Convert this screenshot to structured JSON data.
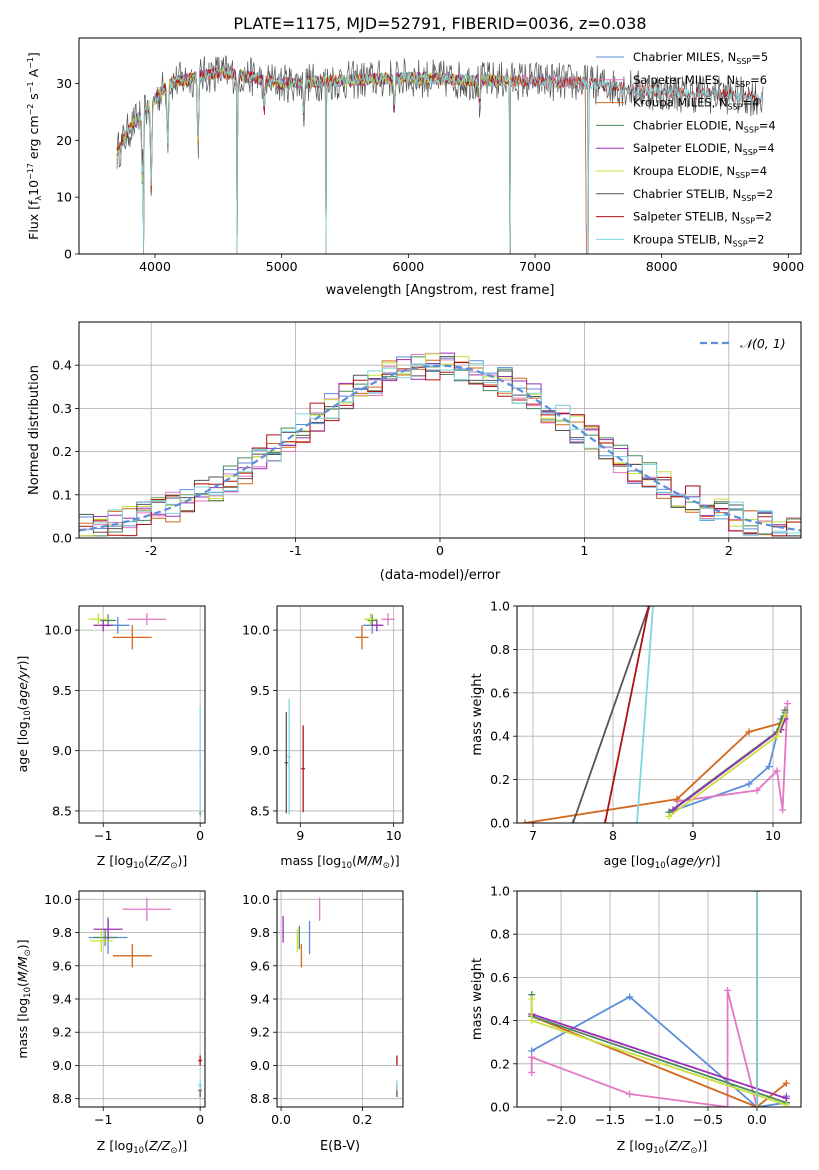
{
  "title": "PLATE=1175, MJD=52791, FIBERID=0036, z=0.038",
  "colors": {
    "chabrier_miles": "#5b8fd9",
    "salpeter_miles": "#e377c2",
    "kroupa_miles": "#d2691e",
    "chabrier_elodie": "#4a8a5a",
    "salpeter_elodie": "#9b30b5",
    "kroupa_elodie": "#c8e03c",
    "chabrier_stelib": "#555555",
    "salpeter_stelib": "#b01010",
    "kroupa_stelib": "#7fd8dc",
    "normal_curve": "#5b8fd9",
    "grid": "#b0b0b0"
  },
  "chart_data": [
    {
      "id": "spectrum",
      "type": "line",
      "xlabel": "wavelength [Angstrom, rest frame]",
      "ylabel": "Flux [f",
      "ylabel_parts": [
        "Flux [f",
        "λ",
        "10",
        "−17",
        " erg cm",
        "−2",
        " s",
        "−1",
        " A",
        "−1",
        "]"
      ],
      "xlim": [
        3400,
        9100
      ],
      "ylim": [
        0,
        38
      ],
      "xticks": [
        4000,
        5000,
        6000,
        7000,
        8000,
        9000
      ],
      "yticks": [
        0,
        10,
        20,
        30
      ],
      "grid": false,
      "legend_position": "right",
      "legend": [
        {
          "key": "chabrier_miles",
          "base": "Chabrier MILES, N",
          "sub": "SSP",
          "tail": "=5"
        },
        {
          "key": "salpeter_miles",
          "base": "Salpeter MILES, N",
          "sub": "SSP",
          "tail": "=6"
        },
        {
          "key": "kroupa_miles",
          "base": "Kroupa MILES, N",
          "sub": "SSP",
          "tail": "=4"
        },
        {
          "key": "chabrier_elodie",
          "base": "Chabrier ELODIE, N",
          "sub": "SSP",
          "tail": "=4"
        },
        {
          "key": "salpeter_elodie",
          "base": "Salpeter ELODIE, N",
          "sub": "SSP",
          "tail": "=4"
        },
        {
          "key": "kroupa_elodie",
          "base": "Kroupa ELODIE, N",
          "sub": "SSP",
          "tail": "=4"
        },
        {
          "key": "chabrier_stelib",
          "base": "Chabrier STELIB, N",
          "sub": "SSP",
          "tail": "=2"
        },
        {
          "key": "salpeter_stelib",
          "base": "Salpeter STELIB, N",
          "sub": "SSP",
          "tail": "=2"
        },
        {
          "key": "kroupa_stelib",
          "base": "Kroupa STELIB, N",
          "sub": "SSP",
          "tail": "=2"
        }
      ],
      "profile": [
        [
          3680,
          17
        ],
        [
          3800,
          22
        ],
        [
          3950,
          26
        ],
        [
          4100,
          30
        ],
        [
          4300,
          31
        ],
        [
          4500,
          32
        ],
        [
          4800,
          31
        ],
        [
          5000,
          30
        ],
        [
          5500,
          30.5
        ],
        [
          6000,
          31
        ],
        [
          6500,
          30.5
        ],
        [
          7000,
          30.5
        ],
        [
          7400,
          30
        ],
        [
          8000,
          28.5
        ],
        [
          8500,
          28
        ],
        [
          8800,
          27.5
        ]
      ],
      "absorption_dips": [
        [
          3900,
          12
        ],
        [
          3970,
          15
        ],
        [
          4100,
          10
        ],
        [
          4340,
          12
        ],
        [
          4650,
          6
        ],
        [
          4861,
          6
        ],
        [
          5175,
          5
        ],
        [
          5890,
          5
        ],
        [
          6563,
          4
        ]
      ],
      "noise_series": "chabrier_stelib",
      "series_ranges": {
        "chabrier_miles": [
          3700,
          7400
        ],
        "salpeter_miles": [
          3700,
          7400
        ],
        "kroupa_miles": [
          3700,
          7400
        ],
        "chabrier_elodie": [
          3700,
          6800
        ],
        "salpeter_elodie": [
          3700,
          6800
        ],
        "kroupa_elodie": [
          3700,
          6800
        ],
        "chabrier_stelib": [
          3700,
          8800
        ],
        "salpeter_stelib": [
          3700,
          8800
        ],
        "kroupa_stelib": [
          3700,
          8800
        ]
      },
      "dropouts": [
        [
          3910,
          0
        ],
        [
          4650,
          0
        ],
        [
          5350,
          0
        ],
        [
          6800,
          0
        ],
        [
          7420,
          0
        ]
      ]
    },
    {
      "id": "residuals",
      "type": "histogram",
      "xlabel": "(data-model)/error",
      "ylabel": "Normed distribution",
      "xlim": [
        -2.5,
        2.5
      ],
      "ylim": [
        0,
        0.5
      ],
      "xticks": [
        -2,
        -1,
        0,
        1,
        2
      ],
      "yticks": [
        0.0,
        0.1,
        0.2,
        0.3,
        0.4
      ],
      "grid": true,
      "legend_position": "top-right",
      "legend": [
        {
          "key": "normal_curve",
          "label": "𝒩(0, 1)",
          "style": "dashed"
        }
      ],
      "bin_width": 0.1,
      "reference_curve": "standard normal pdf",
      "series_keys": [
        "chabrier_miles",
        "salpeter_miles",
        "kroupa_miles",
        "chabrier_elodie",
        "salpeter_elodie",
        "kroupa_elodie",
        "chabrier_stelib",
        "salpeter_stelib",
        "kroupa_stelib"
      ]
    },
    {
      "id": "age_vs_Z",
      "type": "scatter",
      "xlabel": "Z [log",
      "ylabel": "age  [log",
      "xlim": [
        -1.25,
        0.05
      ],
      "ylim": [
        8.4,
        10.2
      ],
      "xticks": [
        -1,
        0
      ],
      "xtick_labels": [
        "−1",
        "0"
      ],
      "yticks": [
        8.5,
        9.0,
        9.5,
        10.0
      ],
      "ytick_labels": [
        "8.5",
        "9.0",
        "9.5",
        "10.0"
      ],
      "grid": true,
      "points": [
        {
          "key": "chabrier_miles",
          "x": -0.85,
          "y": 10.04,
          "xerr": 0.12,
          "yerr": 0.07
        },
        {
          "key": "salpeter_miles",
          "x": -0.55,
          "y": 10.09,
          "xerr": 0.2,
          "yerr": 0.05
        },
        {
          "key": "kroupa_miles",
          "x": -0.7,
          "y": 9.94,
          "xerr": 0.2,
          "yerr": 0.1
        },
        {
          "key": "chabrier_elodie",
          "x": -0.95,
          "y": 10.08,
          "xerr": 0.08,
          "yerr": 0.05
        },
        {
          "key": "salpeter_elodie",
          "x": -1.0,
          "y": 10.04,
          "xerr": 0.1,
          "yerr": 0.05
        },
        {
          "key": "kroupa_elodie",
          "x": -1.05,
          "y": 10.09,
          "xerr": 0.1,
          "yerr": 0.05
        },
        {
          "key": "chabrier_stelib",
          "x": 0.0,
          "y": 8.48,
          "xerr": 0.01,
          "yerr": 0.02
        },
        {
          "key": "salpeter_stelib",
          "x": 0.0,
          "y": 8.48,
          "xerr": 0.01,
          "yerr": 0.02
        },
        {
          "key": "kroupa_stelib",
          "x": 0.0,
          "y": 8.9,
          "xerr": 0.01,
          "yerr": 0.45
        }
      ]
    },
    {
      "id": "age_vs_mass",
      "type": "scatter",
      "xlabel": "mass [log",
      "xlim": [
        8.75,
        10.1
      ],
      "ylim": [
        8.4,
        10.2
      ],
      "xticks": [
        9,
        10
      ],
      "xtick_labels": [
        "9",
        "10"
      ],
      "yticks": [
        8.5,
        9.0,
        9.5,
        10.0
      ],
      "ytick_labels": [
        "8.5",
        "9.0",
        "9.5",
        "10.0"
      ],
      "grid": true,
      "points": [
        {
          "key": "chabrier_miles",
          "x": 9.77,
          "y": 10.04,
          "xerr": 0.1,
          "yerr": 0.07
        },
        {
          "key": "salpeter_miles",
          "x": 9.94,
          "y": 10.09,
          "xerr": 0.07,
          "yerr": 0.05
        },
        {
          "key": "kroupa_miles",
          "x": 9.66,
          "y": 9.94,
          "xerr": 0.07,
          "yerr": 0.1
        },
        {
          "key": "chabrier_elodie",
          "x": 9.77,
          "y": 10.08,
          "xerr": 0.05,
          "yerr": 0.05
        },
        {
          "key": "salpeter_elodie",
          "x": 9.82,
          "y": 10.04,
          "xerr": 0.07,
          "yerr": 0.05
        },
        {
          "key": "kroupa_elodie",
          "x": 9.75,
          "y": 10.09,
          "xerr": 0.07,
          "yerr": 0.05
        },
        {
          "key": "chabrier_stelib",
          "x": 8.85,
          "y": 8.9,
          "xerr": 0.02,
          "yerr": 0.42
        },
        {
          "key": "salpeter_stelib",
          "x": 9.03,
          "y": 8.85,
          "xerr": 0.02,
          "yerr": 0.36
        },
        {
          "key": "kroupa_stelib",
          "x": 8.88,
          "y": 8.95,
          "xerr": 0.02,
          "yerr": 0.48
        }
      ]
    },
    {
      "id": "weight_vs_age",
      "type": "line",
      "xlabel": "age  [log",
      "ylabel": "mass weight",
      "xlim": [
        6.8,
        10.35
      ],
      "ylim": [
        0,
        1.0
      ],
      "xticks": [
        7,
        8,
        9,
        10
      ],
      "yticks": [
        0.0,
        0.2,
        0.4,
        0.6,
        0.8,
        1.0
      ],
      "grid": true,
      "series": [
        {
          "key": "chabrier_miles",
          "x": [
            8.7,
            9.7,
            9.95,
            10.1,
            10.15
          ],
          "y": [
            0.05,
            0.18,
            0.26,
            0.48,
            0.51
          ]
        },
        {
          "key": "salpeter_miles",
          "x": [
            8.8,
            9.8,
            10.05,
            10.12,
            10.18
          ],
          "y": [
            0.1,
            0.15,
            0.24,
            0.06,
            0.55
          ]
        },
        {
          "key": "kroupa_miles",
          "x": [
            6.9,
            8.8,
            9.7,
            10.1
          ],
          "y": [
            0.0,
            0.11,
            0.42,
            0.46
          ]
        },
        {
          "key": "chabrier_elodie",
          "x": [
            8.7,
            10.05,
            10.15
          ],
          "y": [
            0.05,
            0.42,
            0.52
          ]
        },
        {
          "key": "salpeter_elodie",
          "x": [
            8.75,
            10.1,
            10.15
          ],
          "y": [
            0.06,
            0.43,
            0.48
          ]
        },
        {
          "key": "kroupa_elodie",
          "x": [
            8.7,
            10.05,
            10.15
          ],
          "y": [
            0.03,
            0.4,
            0.5
          ]
        },
        {
          "key": "chabrier_stelib",
          "x": [
            7.5,
            8.45
          ],
          "y": [
            0.0,
            1.0
          ]
        },
        {
          "key": "salpeter_stelib",
          "x": [
            7.9,
            8.45
          ],
          "y": [
            0.0,
            1.0
          ]
        },
        {
          "key": "kroupa_stelib",
          "x": [
            8.3,
            8.5
          ],
          "y": [
            0.0,
            1.0
          ]
        }
      ]
    },
    {
      "id": "mass_vs_Z",
      "type": "scatter",
      "xlabel": "Z [log",
      "ylabel": "mass [log",
      "xlim": [
        -1.25,
        0.05
      ],
      "ylim": [
        8.75,
        10.05
      ],
      "xticks": [
        -1,
        0
      ],
      "xtick_labels": [
        "−1",
        "0"
      ],
      "yticks": [
        8.8,
        9.0,
        9.2,
        9.4,
        9.6,
        9.8,
        10.0
      ],
      "ytick_labels": [
        "8.8",
        "9.0",
        "9.2",
        "9.4",
        "9.6",
        "9.8",
        "10.0"
      ],
      "grid": true,
      "points": [
        {
          "key": "chabrier_miles",
          "x": -0.95,
          "y": 9.77,
          "xerr": 0.2,
          "yerr": 0.1
        },
        {
          "key": "salpeter_miles",
          "x": -0.55,
          "y": 9.94,
          "xerr": 0.25,
          "yerr": 0.07
        },
        {
          "key": "kroupa_miles",
          "x": -0.7,
          "y": 9.66,
          "xerr": 0.2,
          "yerr": 0.07
        },
        {
          "key": "chabrier_elodie",
          "x": -0.98,
          "y": 9.77,
          "xerr": 0.12,
          "yerr": 0.05
        },
        {
          "key": "salpeter_elodie",
          "x": -0.95,
          "y": 9.82,
          "xerr": 0.15,
          "yerr": 0.07
        },
        {
          "key": "kroupa_elodie",
          "x": -1.02,
          "y": 9.75,
          "xerr": 0.12,
          "yerr": 0.07
        },
        {
          "key": "chabrier_stelib",
          "x": 0.0,
          "y": 8.85,
          "xerr": 0.02,
          "yerr": 0.04
        },
        {
          "key": "salpeter_stelib",
          "x": 0.0,
          "y": 9.03,
          "xerr": 0.02,
          "yerr": 0.03
        },
        {
          "key": "kroupa_stelib",
          "x": 0.0,
          "y": 8.88,
          "xerr": 0.02,
          "yerr": 0.03
        }
      ]
    },
    {
      "id": "mass_vs_ebv",
      "type": "scatter",
      "xlabel": "E(B-V)",
      "xlim": [
        -0.01,
        0.3
      ],
      "ylim": [
        8.75,
        10.05
      ],
      "xticks": [
        0.0,
        0.2
      ],
      "xtick_labels": [
        "0.0",
        "0.2"
      ],
      "yticks": [
        8.8,
        9.0,
        9.2,
        9.4,
        9.6,
        9.8,
        10.0
      ],
      "ytick_labels": [
        "8.8",
        "9.0",
        "9.2",
        "9.4",
        "9.6",
        "9.8",
        "10.0"
      ],
      "grid": true,
      "points": [
        {
          "key": "chabrier_miles",
          "x": 0.07,
          "y": 9.77,
          "yerr": 0.1
        },
        {
          "key": "salpeter_miles",
          "x": 0.095,
          "y": 9.94,
          "yerr": 0.07
        },
        {
          "key": "kroupa_miles",
          "x": 0.05,
          "y": 9.66,
          "yerr": 0.07
        },
        {
          "key": "chabrier_elodie",
          "x": 0.045,
          "y": 9.77,
          "yerr": 0.07
        },
        {
          "key": "salpeter_elodie",
          "x": 0.005,
          "y": 9.82,
          "yerr": 0.08
        },
        {
          "key": "kroupa_elodie",
          "x": 0.04,
          "y": 9.75,
          "yerr": 0.07
        },
        {
          "key": "chabrier_stelib",
          "x": 0.285,
          "y": 8.85,
          "yerr": 0.04
        },
        {
          "key": "salpeter_stelib",
          "x": 0.285,
          "y": 9.03,
          "yerr": 0.03
        },
        {
          "key": "kroupa_stelib",
          "x": 0.285,
          "y": 8.88,
          "yerr": 0.03
        }
      ]
    },
    {
      "id": "weight_vs_Z",
      "type": "line",
      "xlabel": "Z [log",
      "ylabel": "mass weight",
      "xlim": [
        -2.45,
        0.45
      ],
      "ylim": [
        0,
        1.0
      ],
      "xticks": [
        -2.0,
        -1.5,
        -1.0,
        -0.5,
        0.0
      ],
      "xtick_labels": [
        "−2.0",
        "−1.5",
        "−1.0",
        "−0.5",
        "0.0"
      ],
      "yticks": [
        0.0,
        0.2,
        0.4,
        0.6,
        0.8,
        1.0
      ],
      "grid": true,
      "series": [
        {
          "key": "chabrier_miles",
          "x": [
            -2.3,
            -1.3,
            0.0,
            0.3,
            0.3
          ],
          "y": [
            0.26,
            0.51,
            0.0,
            0.02,
            0.05
          ]
        },
        {
          "key": "salpeter_miles",
          "x": [
            -2.3,
            -2.3,
            -1.3,
            -0.3,
            -0.3,
            0.0,
            -0.05
          ],
          "y": [
            0.16,
            0.23,
            0.06,
            0.0,
            0.54,
            0.0,
            0.0
          ]
        },
        {
          "key": "kroupa_miles",
          "x": [
            -2.3,
            0.0,
            0.3
          ],
          "y": [
            0.42,
            0.0,
            0.11
          ]
        },
        {
          "key": "chabrier_elodie",
          "x": [
            -2.3,
            -2.3,
            0.3
          ],
          "y": [
            0.52,
            0.42,
            0.02
          ]
        },
        {
          "key": "salpeter_elodie",
          "x": [
            -2.3,
            0.3
          ],
          "y": [
            0.43,
            0.04
          ]
        },
        {
          "key": "kroupa_elodie",
          "x": [
            -2.3,
            -2.3,
            0.3
          ],
          "y": [
            0.5,
            0.4,
            0.01
          ]
        },
        {
          "key": "chabrier_stelib",
          "x": [
            0.0,
            0.0
          ],
          "y": [
            0.0,
            1.0
          ]
        },
        {
          "key": "salpeter_stelib",
          "x": [
            0.0,
            0.0
          ],
          "y": [
            0.0,
            1.0
          ]
        },
        {
          "key": "kroupa_stelib",
          "x": [
            0.0,
            0.0
          ],
          "y": [
            0.0,
            1.0
          ]
        }
      ]
    }
  ]
}
